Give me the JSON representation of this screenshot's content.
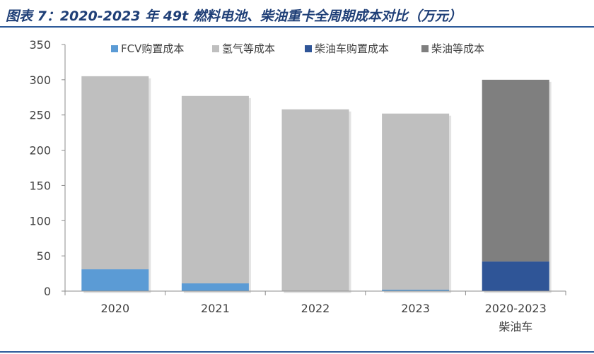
{
  "figure": {
    "title": "图表 7：2020-2023 年 49t 燃料电池、柴油重卡全周期成本对比（万元）"
  },
  "chart_data": {
    "type": "bar",
    "stacked": true,
    "categories": [
      "2020",
      "2021",
      "2022",
      "2023",
      "2020-2023\n柴油车"
    ],
    "series": [
      {
        "name": "FCV购置成本",
        "color": "#5b9bd5",
        "values": [
          31,
          11,
          0,
          2,
          0
        ]
      },
      {
        "name": "氢气等成本",
        "color": "#bfbfbf",
        "values": [
          274,
          266,
          258,
          250,
          0
        ]
      },
      {
        "name": "柴油车购置成本",
        "color": "#2f5597",
        "values": [
          0,
          0,
          0,
          0,
          42
        ]
      },
      {
        "name": "柴油等成本",
        "color": "#7f7f7f",
        "values": [
          0,
          0,
          0,
          0,
          258
        ]
      }
    ],
    "ylim": [
      0,
      350
    ],
    "yticks": [
      0,
      50,
      100,
      150,
      200,
      250,
      300,
      350
    ],
    "grid": false,
    "legend_position": "top"
  }
}
